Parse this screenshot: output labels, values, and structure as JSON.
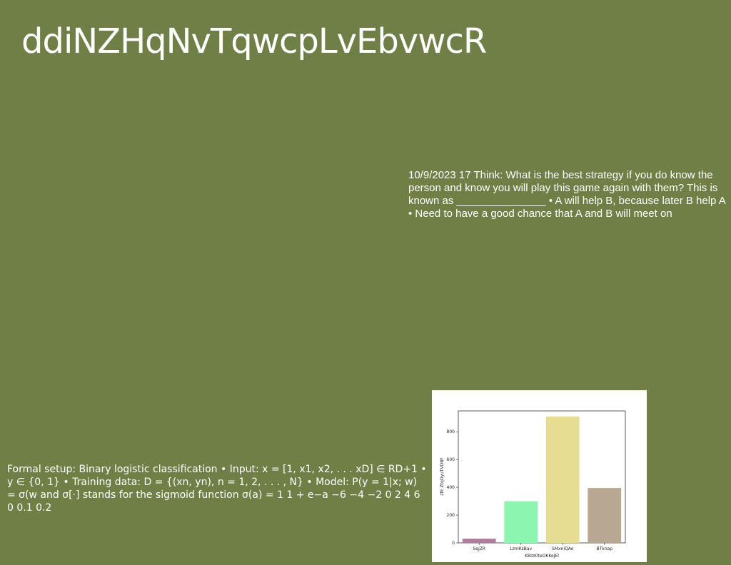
{
  "slide": {
    "title": "ddiNZHqNvTqwcpLvEbvwcR",
    "text_block_1": "10/9/2023 17 Think: What is the best strategy if you do know the person and know you will play this game again with them? This is known as _______________ • A will help B, because later B help A • Need to have a good chance that A and B will meet on",
    "text_block_2": "Formal setup: Binary logistic classification • Input: x = [1, x1, x2, . . . xD] ∈ RD+1 • y ∈ {0, 1} • Training data: D = {(xn, yn), n = 1, 2, . . . , N} • Model: P(y = 1|x; w) = σ(w and σ[·] stands for the sigmoid function σ(a) = 1 1 + e−a −6 −4 −2 0 2 4 6 0 0.1 0.2"
  },
  "chart_data": {
    "type": "bar",
    "categories": [
      "SqjZR",
      "LzmKsBav",
      "SMxniQAe",
      "BTknap"
    ],
    "values": [
      30,
      300,
      910,
      395
    ],
    "colors": [
      "#b07aa1",
      "#8cf5b0",
      "#e6dc92",
      "#b8a892"
    ],
    "xlabel": "KBIzKlteOKKeJEl",
    "ylabel": "ztE ZtqDyuTVDBY",
    "ylim": [
      0,
      950
    ],
    "yticks": [
      0,
      200,
      400,
      600,
      800
    ],
    "grid": false
  }
}
